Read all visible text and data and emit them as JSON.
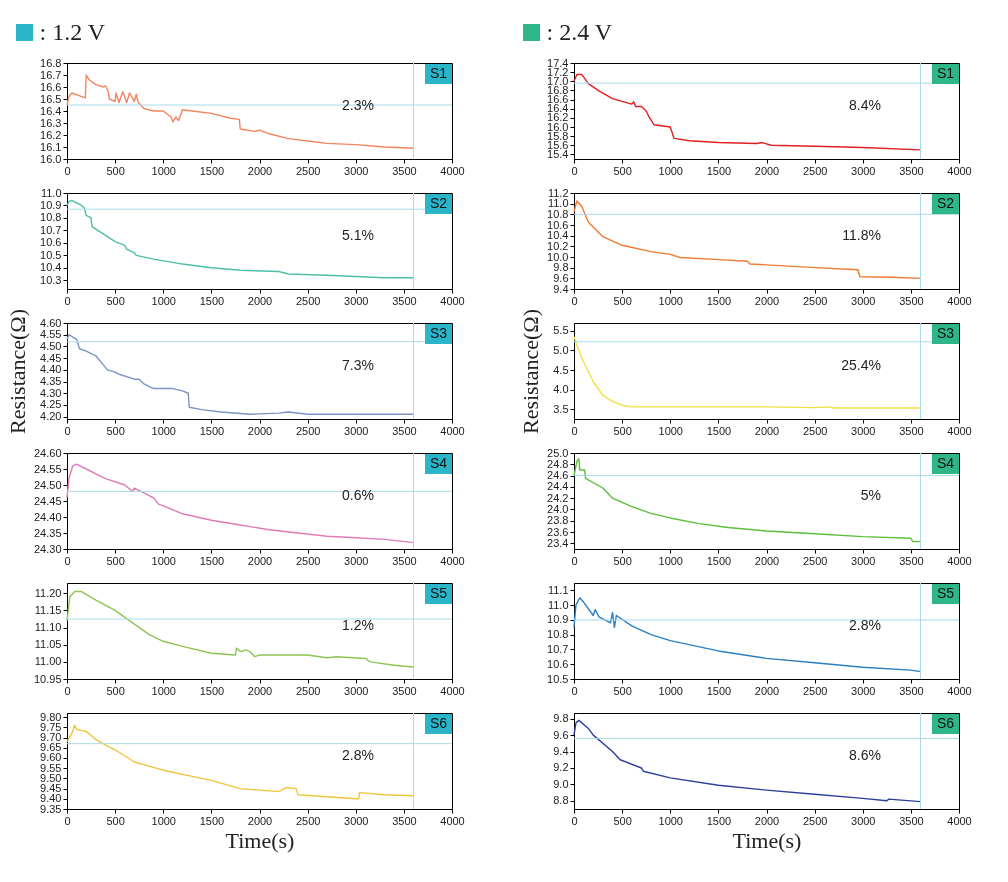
{
  "chart_data": [
    {
      "type": "line",
      "title": ": 1.2 V",
      "xlim": [
        0,
        4000
      ],
      "xticks": [
        0,
        500,
        1000,
        1500,
        2000,
        2500,
        3000,
        3500,
        4000
      ],
      "ylim": [
        16.0,
        16.8
      ],
      "yticks": [
        {
          "value": 16,
          "label": "16.0"
        },
        16.1,
        16.2,
        16.3,
        16.4,
        16.5,
        16.6,
        16.7,
        16.8
      ],
      "x": [
        0,
        20,
        50,
        190,
        200,
        230,
        300,
        380,
        400,
        430,
        440,
        500,
        510,
        540,
        580,
        620,
        650,
        700,
        720,
        740,
        800,
        900,
        1000,
        1080,
        1100,
        1130,
        1160,
        1200,
        1300,
        1500,
        1700,
        1790,
        1800,
        1950,
        2000,
        2100,
        2300,
        2500,
        2700,
        3000,
        3300,
        3600
      ],
      "series": [
        {
          "color": "#f4845f",
          "values": [
            16.45,
            16.52,
            16.55,
            16.51,
            16.7,
            16.66,
            16.62,
            16.6,
            16.61,
            16.56,
            16.5,
            16.48,
            16.55,
            16.47,
            16.56,
            16.47,
            16.55,
            16.48,
            16.54,
            16.47,
            16.42,
            16.4,
            16.4,
            16.35,
            16.31,
            16.35,
            16.32,
            16.41,
            16.4,
            16.38,
            16.34,
            16.33,
            16.25,
            16.23,
            16.24,
            16.21,
            16.17,
            16.15,
            16.13,
            16.12,
            16.1,
            16.09
          ]
        }
      ],
      "ref_lines": [
        {
          "axis": "y",
          "value": 16.45,
          "color": "#a9dcea"
        },
        {
          "axis": "x",
          "value": 3600,
          "color": "#a9dcea"
        }
      ],
      "annotations": [
        "S1",
        "2.3%"
      ]
    },
    {
      "type": "line",
      "xlim": [
        0,
        4000
      ],
      "xticks": [
        0,
        500,
        1000,
        1500,
        2000,
        2500,
        3000,
        3500,
        4000
      ],
      "ylim": [
        10.23,
        11.0
      ],
      "yticks": [
        10.3,
        10.4,
        10.5,
        10.6,
        10.7,
        10.8,
        10.9,
        {
          "value": 11,
          "label": "11.0"
        }
      ],
      "x": [
        0,
        20,
        50,
        150,
        180,
        200,
        250,
        260,
        300,
        400,
        500,
        600,
        620,
        700,
        720,
        900,
        1200,
        1500,
        1800,
        2200,
        2300,
        2700,
        3000,
        3300,
        3600
      ],
      "series": [
        {
          "color": "#4dbfa8",
          "values": [
            10.9,
            10.93,
            10.94,
            10.9,
            10.88,
            10.82,
            10.8,
            10.73,
            10.71,
            10.66,
            10.61,
            10.58,
            10.55,
            10.52,
            10.5,
            10.47,
            10.43,
            10.4,
            10.38,
            10.37,
            10.35,
            10.34,
            10.33,
            10.32,
            10.32
          ]
        }
      ],
      "ref_lines": [
        {
          "axis": "y",
          "value": 10.87,
          "color": "#a9dcea"
        },
        {
          "axis": "x",
          "value": 3600,
          "color": "#a9dcea"
        }
      ],
      "annotations": [
        "S2",
        "5.1%"
      ]
    },
    {
      "type": "line",
      "ylabel": "Resistance(Ω)",
      "xlim": [
        0,
        4000
      ],
      "xticks": [
        0,
        500,
        1000,
        1500,
        2000,
        2500,
        3000,
        3500,
        4000
      ],
      "ylim": [
        4.19,
        4.6
      ],
      "yticks": [
        {
          "value": 4.2,
          "label": "4.20"
        },
        4.25,
        {
          "value": 4.3,
          "label": "4.30"
        },
        4.35,
        {
          "value": 4.4,
          "label": "4.40"
        },
        4.45,
        {
          "value": 4.5,
          "label": "4.50"
        },
        4.55,
        {
          "value": 4.6,
          "label": "4.60"
        }
      ],
      "x": [
        0,
        20,
        100,
        130,
        200,
        300,
        380,
        420,
        500,
        550,
        700,
        750,
        800,
        900,
        1100,
        1200,
        1260,
        1270,
        1400,
        1600,
        1900,
        2200,
        2300,
        2500,
        3000,
        3600
      ],
      "series": [
        {
          "color": "#7b93c7",
          "values": [
            4.53,
            4.55,
            4.53,
            4.49,
            4.48,
            4.46,
            4.42,
            4.4,
            4.39,
            4.38,
            4.36,
            4.36,
            4.34,
            4.32,
            4.32,
            4.31,
            4.3,
            4.24,
            4.23,
            4.22,
            4.21,
            4.215,
            4.22,
            4.21,
            4.21,
            4.21
          ]
        }
      ],
      "ref_lines": [
        {
          "axis": "y",
          "value": 4.52,
          "color": "#a9dcea"
        },
        {
          "axis": "x",
          "value": 3600,
          "color": "#a9dcea"
        }
      ],
      "annotations": [
        "S3",
        "7.3%"
      ]
    },
    {
      "type": "line",
      "xlim": [
        0,
        4000
      ],
      "xticks": [
        0,
        500,
        1000,
        1500,
        2000,
        2500,
        3000,
        3500,
        4000
      ],
      "ylim": [
        24.3,
        24.6
      ],
      "yticks": [
        {
          "value": 24.3,
          "label": "24.30"
        },
        24.35,
        {
          "value": 24.4,
          "label": "24.40"
        },
        24.45,
        {
          "value": 24.5,
          "label": "24.50"
        },
        24.55,
        {
          "value": 24.6,
          "label": "24.60"
        }
      ],
      "x": [
        0,
        20,
        60,
        100,
        200,
        400,
        600,
        680,
        700,
        900,
        950,
        1000,
        1200,
        1500,
        1800,
        2100,
        2400,
        2700,
        3000,
        3300,
        3600
      ],
      "series": [
        {
          "color": "#e07ab8",
          "values": [
            24.46,
            24.52,
            24.56,
            24.565,
            24.55,
            24.52,
            24.5,
            24.48,
            24.49,
            24.46,
            24.44,
            24.435,
            24.41,
            24.39,
            24.375,
            24.36,
            24.35,
            24.34,
            24.335,
            24.33,
            24.32
          ]
        }
      ],
      "ref_lines": [
        {
          "axis": "y",
          "value": 24.48,
          "color": "#a9dcea"
        },
        {
          "axis": "x",
          "value": 3600,
          "color": "#a9dcea"
        }
      ],
      "annotations": [
        "S4",
        "0.6%"
      ]
    },
    {
      "type": "line",
      "xlim": [
        0,
        4000
      ],
      "xticks": [
        0,
        500,
        1000,
        1500,
        2000,
        2500,
        3000,
        3500,
        4000
      ],
      "ylim": [
        10.95,
        11.23
      ],
      "yticks": [
        10.95,
        {
          "value": 11,
          "label": "11.00"
        },
        11.05,
        {
          "value": 11.1,
          "label": "11.10"
        },
        11.15,
        {
          "value": 11.2,
          "label": "11.20"
        }
      ],
      "x": [
        0,
        30,
        80,
        150,
        300,
        500,
        700,
        850,
        1000,
        1200,
        1500,
        1750,
        1760,
        1800,
        1860,
        1900,
        1950,
        2000,
        2300,
        2500,
        2700,
        2800,
        3100,
        3150,
        3400,
        3600
      ],
      "series": [
        {
          "color": "#8dc453",
          "values": [
            11.12,
            11.19,
            11.205,
            11.205,
            11.18,
            11.15,
            11.11,
            11.08,
            11.06,
            11.045,
            11.025,
            11.02,
            11.04,
            11.03,
            11.035,
            11.03,
            11.015,
            11.02,
            11.02,
            11.02,
            11.012,
            11.015,
            11.01,
            11.0,
            10.99,
            10.985
          ]
        }
      ],
      "ref_lines": [
        {
          "axis": "y",
          "value": 11.125,
          "color": "#a9dcea"
        },
        {
          "axis": "x",
          "value": 3600,
          "color": "#a9dcea"
        }
      ],
      "annotations": [
        "S5",
        "1.2%"
      ]
    },
    {
      "type": "line",
      "xlabel": "Time(s)",
      "xlim": [
        0,
        4000
      ],
      "xticks": [
        0,
        500,
        1000,
        1500,
        2000,
        2500,
        3000,
        3500,
        4000
      ],
      "ylim": [
        9.35,
        9.82
      ],
      "yticks": [
        9.35,
        {
          "value": 9.4,
          "label": "9.40"
        },
        9.45,
        {
          "value": 9.5,
          "label": "9.50"
        },
        9.55,
        {
          "value": 9.6,
          "label": "9.60"
        },
        9.65,
        {
          "value": 9.7,
          "label": "9.70"
        },
        9.75,
        {
          "value": 9.8,
          "label": "9.80"
        }
      ],
      "x": [
        0,
        50,
        80,
        100,
        200,
        300,
        450,
        500,
        700,
        1000,
        1300,
        1500,
        1800,
        2200,
        2280,
        2380,
        2400,
        2700,
        3000,
        3030,
        3040,
        3300,
        3600
      ],
      "series": [
        {
          "color": "#f0c43c",
          "values": [
            9.68,
            9.72,
            9.76,
            9.74,
            9.73,
            9.69,
            9.65,
            9.64,
            9.58,
            9.54,
            9.51,
            9.49,
            9.45,
            9.435,
            9.455,
            9.45,
            9.42,
            9.41,
            9.4,
            9.4,
            9.43,
            9.42,
            9.415
          ]
        }
      ],
      "ref_lines": [
        {
          "axis": "y",
          "value": 9.67,
          "color": "#a9dcea"
        },
        {
          "axis": "x",
          "value": 3600,
          "color": "#a9dcea"
        }
      ],
      "annotations": [
        "S6",
        "2.8%"
      ]
    },
    {
      "type": "line",
      "title": ": 2.4 V",
      "xlim": [
        0,
        4000
      ],
      "xticks": [
        0,
        500,
        1000,
        1500,
        2000,
        2500,
        3000,
        3500,
        4000
      ],
      "ylim": [
        15.3,
        17.4
      ],
      "yticks": [
        15.4,
        15.6,
        15.8,
        {
          "value": 16,
          "label": "16.0"
        },
        16.2,
        16.4,
        16.6,
        16.8,
        {
          "value": 17,
          "label": "17.0"
        },
        17.2,
        17.4
      ],
      "x": [
        0,
        30,
        80,
        150,
        250,
        400,
        600,
        620,
        640,
        700,
        750,
        780,
        830,
        1000,
        1040,
        1200,
        1500,
        1900,
        1950,
        2050,
        2500,
        3000,
        3600
      ],
      "series": [
        {
          "color": "#e02020",
          "values": [
            17.0,
            17.15,
            17.15,
            16.95,
            16.8,
            16.62,
            16.5,
            16.55,
            16.45,
            16.45,
            16.35,
            16.22,
            16.05,
            16.0,
            15.75,
            15.7,
            15.66,
            15.64,
            15.66,
            15.6,
            15.58,
            15.55,
            15.5
          ]
        }
      ],
      "ref_lines": [
        {
          "axis": "y",
          "value": 16.96,
          "color": "#a9dcea"
        },
        {
          "axis": "x",
          "value": 3600,
          "color": "#a9dcea"
        }
      ],
      "annotations": [
        "S1",
        "8.4%"
      ]
    },
    {
      "type": "line",
      "xlim": [
        0,
        4000
      ],
      "xticks": [
        0,
        500,
        1000,
        1500,
        2000,
        2500,
        3000,
        3500,
        4000
      ],
      "ylim": [
        9.4,
        11.2
      ],
      "yticks": [
        9.4,
        9.6,
        9.8,
        {
          "value": 10,
          "label": "10.0"
        },
        10.2,
        10.4,
        10.6,
        10.8,
        {
          "value": 11,
          "label": "11.0"
        },
        11.2
      ],
      "x": [
        0,
        30,
        80,
        150,
        300,
        500,
        800,
        1000,
        1100,
        1500,
        1800,
        1830,
        2500,
        2950,
        2970,
        3300,
        3600
      ],
      "series": [
        {
          "color": "#f07a30",
          "values": [
            10.85,
            11.05,
            10.95,
            10.65,
            10.38,
            10.22,
            10.1,
            10.05,
            9.99,
            9.95,
            9.92,
            9.87,
            9.8,
            9.76,
            9.63,
            9.62,
            9.6
          ]
        }
      ],
      "ref_lines": [
        {
          "axis": "y",
          "value": 10.8,
          "color": "#a9dcea"
        },
        {
          "axis": "x",
          "value": 3600,
          "color": "#a9dcea"
        }
      ],
      "annotations": [
        "S2",
        "11.8%"
      ]
    },
    {
      "type": "line",
      "ylabel": "Resistance(Ω)",
      "xlim": [
        0,
        4000
      ],
      "xticks": [
        0,
        500,
        1000,
        1500,
        2000,
        2500,
        3000,
        3500,
        4000
      ],
      "ylim": [
        3.25,
        5.7
      ],
      "yticks": [
        3.5,
        {
          "value": 4,
          "label": "4.0"
        },
        4.5,
        {
          "value": 5,
          "label": "5.0"
        },
        5.5
      ],
      "x": [
        0,
        50,
        100,
        200,
        300,
        400,
        500,
        600,
        1000,
        2000,
        2500,
        2650,
        2700,
        3600
      ],
      "series": [
        {
          "color": "#f0e040",
          "values": [
            5.35,
            5.0,
            4.7,
            4.2,
            3.85,
            3.7,
            3.6,
            3.56,
            3.56,
            3.56,
            3.54,
            3.56,
            3.53,
            3.53
          ]
        }
      ],
      "ref_lines": [
        {
          "axis": "y",
          "value": 5.22,
          "color": "#a9dcea"
        },
        {
          "axis": "x",
          "value": 3600,
          "color": "#a9dcea"
        }
      ],
      "annotations": [
        "S3",
        "25.4%"
      ]
    },
    {
      "type": "line",
      "xlim": [
        0,
        4000
      ],
      "xticks": [
        0,
        500,
        1000,
        1500,
        2000,
        2500,
        3000,
        3500,
        4000
      ],
      "ylim": [
        23.3,
        25.0
      ],
      "yticks": [
        23.4,
        23.6,
        23.8,
        {
          "value": 24,
          "label": "24.0"
        },
        24.2,
        24.4,
        24.6,
        24.8,
        {
          "value": 25,
          "label": "25.0"
        }
      ],
      "x": [
        0,
        30,
        50,
        60,
        110,
        120,
        300,
        400,
        600,
        800,
        1000,
        1300,
        1600,
        2000,
        2500,
        3000,
        3500,
        3520,
        3600
      ],
      "series": [
        {
          "color": "#5cbf3a",
          "values": [
            24.6,
            24.85,
            24.9,
            24.7,
            24.7,
            24.55,
            24.38,
            24.2,
            24.05,
            23.93,
            23.85,
            23.75,
            23.68,
            23.62,
            23.57,
            23.52,
            23.49,
            23.43,
            23.43
          ]
        }
      ],
      "ref_lines": [
        {
          "axis": "y",
          "value": 24.6,
          "color": "#a9dcea"
        },
        {
          "axis": "x",
          "value": 3600,
          "color": "#a9dcea"
        }
      ],
      "annotations": [
        "S4",
        "5%"
      ]
    },
    {
      "type": "line",
      "xlim": [
        0,
        4000
      ],
      "xticks": [
        0,
        500,
        1000,
        1500,
        2000,
        2500,
        3000,
        3500,
        4000
      ],
      "ylim": [
        10.5,
        11.15
      ],
      "yticks": [
        10.5,
        10.6,
        10.7,
        10.8,
        10.9,
        {
          "value": 11,
          "label": "11.0"
        },
        11.1
      ],
      "x": [
        0,
        20,
        60,
        100,
        200,
        220,
        260,
        380,
        400,
        420,
        440,
        600,
        800,
        1000,
        1500,
        2000,
        2500,
        3000,
        3500,
        3600
      ],
      "series": [
        {
          "color": "#2a7fc0",
          "values": [
            10.85,
            11.0,
            11.05,
            11.02,
            10.93,
            10.97,
            10.92,
            10.88,
            10.95,
            10.85,
            10.93,
            10.86,
            10.8,
            10.76,
            10.69,
            10.64,
            10.61,
            10.58,
            10.56,
            10.55
          ]
        }
      ],
      "ref_lines": [
        {
          "axis": "y",
          "value": 10.9,
          "color": "#a9dcea"
        },
        {
          "axis": "x",
          "value": 3600,
          "color": "#a9dcea"
        }
      ],
      "annotations": [
        "S5",
        "2.8%"
      ]
    },
    {
      "type": "line",
      "xlabel": "Time(s)",
      "xlim": [
        0,
        4000
      ],
      "xticks": [
        0,
        500,
        1000,
        1500,
        2000,
        2500,
        3000,
        3500,
        4000
      ],
      "ylim": [
        8.7,
        9.87
      ],
      "yticks": [
        8.8,
        {
          "value": 9,
          "label": "9.0"
        },
        9.2,
        9.4,
        9.6,
        9.8
      ],
      "x": [
        0,
        20,
        50,
        150,
        200,
        400,
        480,
        700,
        720,
        1000,
        1500,
        2000,
        2500,
        3000,
        3250,
        3270,
        3600
      ],
      "series": [
        {
          "color": "#2e3f99",
          "values": [
            9.6,
            9.75,
            9.78,
            9.68,
            9.6,
            9.4,
            9.3,
            9.2,
            9.16,
            9.08,
            8.99,
            8.93,
            8.88,
            8.83,
            8.8,
            8.82,
            8.79
          ]
        }
      ],
      "ref_lines": [
        {
          "axis": "y",
          "value": 9.56,
          "color": "#a9dcea"
        },
        {
          "axis": "x",
          "value": 3600,
          "color": "#a9dcea"
        }
      ],
      "annotations": [
        "S6",
        "8.6%"
      ]
    }
  ]
}
